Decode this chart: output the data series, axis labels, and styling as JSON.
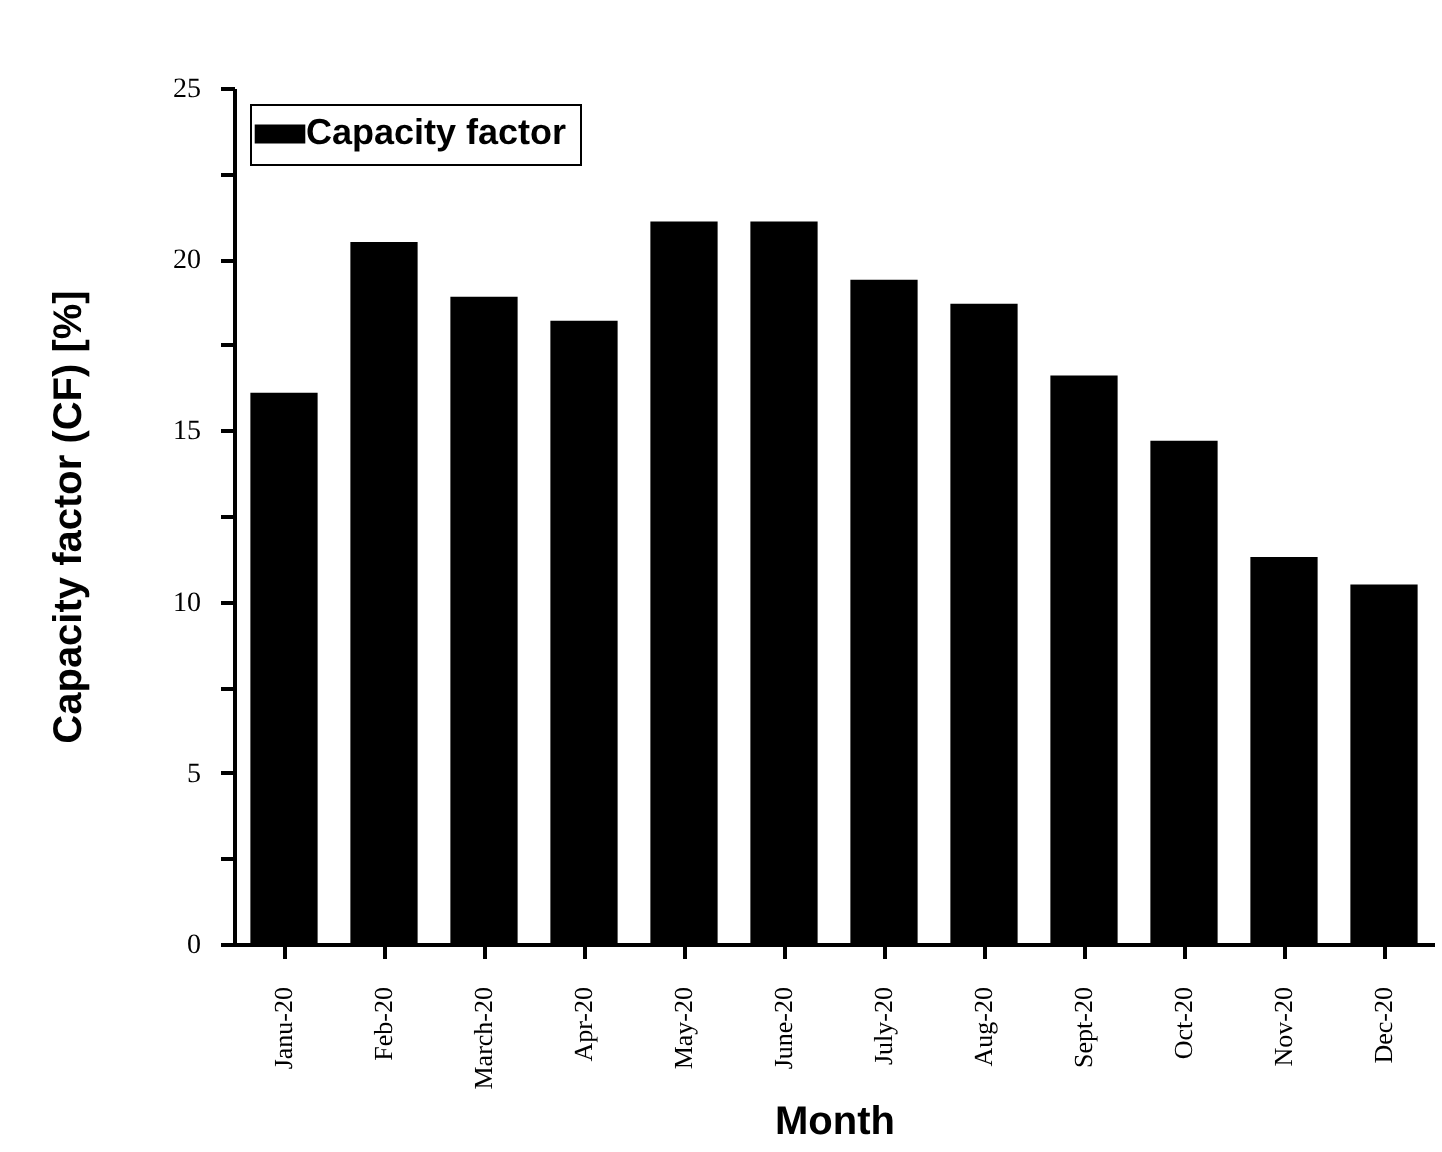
{
  "chart_data": {
    "type": "bar",
    "xlabel": "Month",
    "ylabel": "Capacity factor (CF) [%]",
    "categories": [
      "Janu-20",
      "Feb-20",
      "March-20",
      "Apr-20",
      "May-20",
      "June-20",
      "July-20",
      "Aug-20",
      "Sept-20",
      "Oct-20",
      "Nov-20",
      "Dec-20"
    ],
    "series": [
      {
        "name": "Capacity factor",
        "color": "#000000",
        "values": [
          16.1,
          20.5,
          18.9,
          18.2,
          21.1,
          21.1,
          19.4,
          18.7,
          16.6,
          14.7,
          11.3,
          10.5
        ]
      }
    ],
    "ylim": [
      0,
      25
    ],
    "yticks": [
      0,
      {
        "value": 2.5,
        "label": null
      },
      5,
      {
        "value": 7.5,
        "label": null
      },
      10,
      {
        "value": 12.5,
        "label": null
      },
      15,
      {
        "value": 17.5,
        "label": null
      },
      20,
      {
        "value": 22.5,
        "label": null
      },
      25
    ],
    "grid": false,
    "legend": "top left"
  }
}
